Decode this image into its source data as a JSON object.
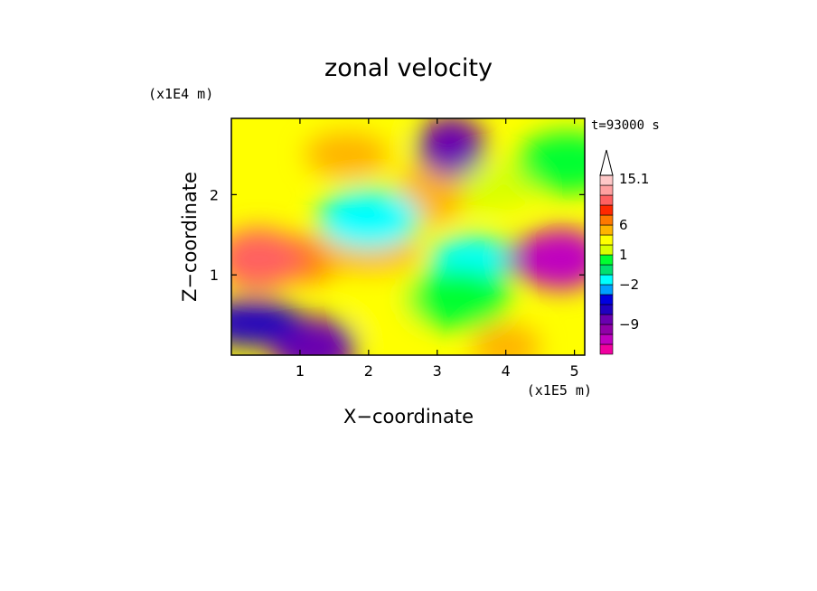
{
  "chart_data": {
    "type": "heatmap",
    "title": "zonal velocity",
    "xlabel": "X−coordinate",
    "ylabel": "Z−coordinate",
    "x_unit": "(x1E5 m)",
    "y_unit": "(x1E4 m)",
    "time_label": "t=93000 s",
    "xlim": [
      0,
      5.15
    ],
    "ylim": [
      0,
      2.95
    ],
    "x_ticks": [
      1,
      2,
      3,
      4,
      5
    ],
    "y_ticks": [
      1,
      2
    ],
    "colorbar": {
      "levels": [
        "-14",
        "-12",
        "-10",
        "-9",
        "-7",
        "-5",
        "-3",
        "-2",
        "-1",
        "0",
        "1",
        "2",
        "3",
        "6",
        "8",
        "10",
        "12",
        "15.1"
      ],
      "labels": [
        {
          "value": "15.1",
          "level": 15.1
        },
        {
          "value": "6",
          "level": 6
        },
        {
          "value": "1",
          "level": 1
        },
        {
          "value": "−2",
          "level": -2
        },
        {
          "value": "−9",
          "level": -9
        }
      ],
      "colors": [
        "#f000a0",
        "#c000c0",
        "#9000a8",
        "#6a00b0",
        "#2000c0",
        "#0000e0",
        "#00a0ff",
        "#00ffff",
        "#00e070",
        "#00ff30",
        "#d8ff00",
        "#ffff00",
        "#ffb400",
        "#ff7800",
        "#ff2800",
        "#ff6060",
        "#ffa0a0",
        "#ffc8c8"
      ]
    },
    "regions": [
      {
        "x": 1.1,
        "z": 1.2,
        "value": 6
      },
      {
        "x": 0.4,
        "z": 1.2,
        "value": 10
      },
      {
        "x": 2.0,
        "z": 1.3,
        "value": 4
      },
      {
        "x": 2.3,
        "z": 0.6,
        "value": 2
      },
      {
        "x": 3.5,
        "z": 1.2,
        "value": -2
      },
      {
        "x": 3.3,
        "z": 0.7,
        "value": 0
      },
      {
        "x": 4.5,
        "z": 1.2,
        "value": -9
      },
      {
        "x": 4.8,
        "z": 1.2,
        "value": -11
      },
      {
        "x": 3.7,
        "z": 2.1,
        "value": 1
      },
      {
        "x": 2.9,
        "z": 2.0,
        "value": 4
      },
      {
        "x": 1.9,
        "z": 2.6,
        "value": 2
      },
      {
        "x": 2.0,
        "z": 1.7,
        "value": -2
      },
      {
        "x": 4.0,
        "z": 0.1,
        "value": 5
      },
      {
        "x": 1.2,
        "z": 0.1,
        "value": -8
      },
      {
        "x": 0.3,
        "z": 0.4,
        "value": -7
      },
      {
        "x": 3.2,
        "z": 2.6,
        "value": -8
      },
      {
        "x": 1.7,
        "z": 2.5,
        "value": 5
      },
      {
        "x": 4.9,
        "z": 2.4,
        "value": 0
      }
    ]
  }
}
